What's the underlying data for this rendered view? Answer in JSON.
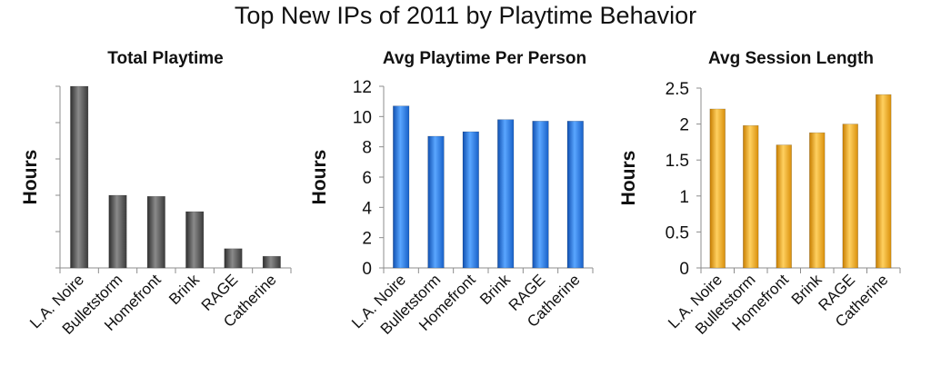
{
  "title": "Top New IPs of 2011 by Playtime Behavior",
  "colors": {
    "gray": "#555555",
    "blue": "#1f73de",
    "orange": "#f2a318",
    "axis": "#8c8c8c"
  },
  "chart_data": [
    {
      "type": "bar",
      "title": "Total Playtime",
      "ylabel": "Hours",
      "categories": [
        "L.A. Noire",
        "Bulletstorm",
        "Homefront",
        "Brink",
        "RAGE",
        "Catherine"
      ],
      "values": [
        5.0,
        2.0,
        1.97,
        1.55,
        0.53,
        0.32
      ],
      "ylim": [
        0,
        5
      ],
      "yticks": [
        0,
        1,
        2,
        3,
        4,
        5
      ],
      "ytick_labels": [],
      "color": "gray"
    },
    {
      "type": "bar",
      "title": "Avg Playtime Per Person",
      "ylabel": "Hours",
      "categories": [
        "L.A. Noire",
        "Bulletstorm",
        "Homefront",
        "Brink",
        "RAGE",
        "Catherine"
      ],
      "values": [
        10.7,
        8.7,
        9.0,
        9.8,
        9.7,
        9.7
      ],
      "ylim": [
        0,
        12
      ],
      "yticks": [
        0,
        2,
        4,
        6,
        8,
        10,
        12
      ],
      "ytick_labels": [
        "0",
        "2",
        "4",
        "6",
        "8",
        "10",
        "12"
      ],
      "color": "blue"
    },
    {
      "type": "bar",
      "title": "Avg Session Length",
      "ylabel": "Hours",
      "categories": [
        "L.A. Noire",
        "Bulletstorm",
        "Homefront",
        "Brink",
        "RAGE",
        "Catherine"
      ],
      "values": [
        2.21,
        1.98,
        1.71,
        1.88,
        2.0,
        2.41
      ],
      "ylim": [
        0,
        2.5
      ],
      "yticks": [
        0,
        0.5,
        1,
        1.5,
        2,
        2.5
      ],
      "ytick_labels": [
        "0",
        "0.5",
        "1",
        "1.5",
        "2",
        "2.5"
      ],
      "color": "orange"
    }
  ]
}
